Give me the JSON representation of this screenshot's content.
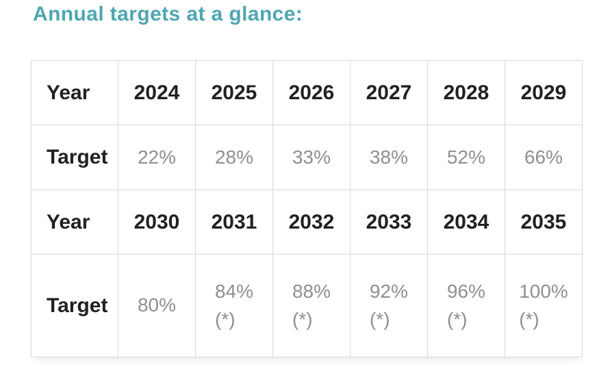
{
  "title": "Annual targets at a glance:",
  "colors": {
    "title_teal": "#4fa6b1",
    "label_dark": "#212121",
    "value_gray": "#8f8f8f",
    "border_gray": "#d8d8d8",
    "background": "#ffffff"
  },
  "table": {
    "rows": [
      {
        "label": "Year",
        "cells": [
          "2024",
          "2025",
          "2026",
          "2027",
          "2028",
          "2029"
        ]
      },
      {
        "label": "Target",
        "cells": [
          "22%",
          "28%",
          "33%",
          "38%",
          "52%",
          "66%"
        ]
      },
      {
        "label": "Year",
        "cells": [
          "2030",
          "2031",
          "2032",
          "2033",
          "2034",
          "2035"
        ]
      },
      {
        "label": "Target",
        "cells": [
          "80%",
          "84%\n(*)",
          "88%\n(*)",
          "92%\n(*)",
          "96%\n(*)",
          "100%\n(*)"
        ]
      }
    ]
  }
}
